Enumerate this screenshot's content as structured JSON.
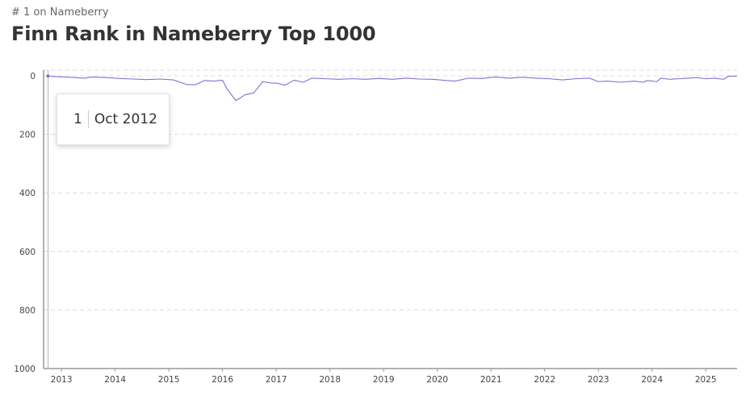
{
  "header": {
    "subtitle": "# 1 on Nameberry",
    "title": "Finn Rank in Nameberry Top 1000"
  },
  "tooltip": {
    "rank": "1",
    "date": "Oct 2012"
  },
  "colors": {
    "line": "#7b74d6",
    "grid": "#dcdcdc",
    "axis": "#999999",
    "cursor": "#bbbbbb"
  },
  "chart_data": {
    "type": "line",
    "title": "Finn Rank in Nameberry Top 1000",
    "xlabel": "",
    "ylabel": "",
    "y_inverted": true,
    "ylim": [
      1000,
      0
    ],
    "y_ticks": [
      0,
      200,
      400,
      600,
      800,
      1000
    ],
    "x_ticks": [
      "2013",
      "2014",
      "2015",
      "2016",
      "2017",
      "2018",
      "2019",
      "2020",
      "2021",
      "2022",
      "2023",
      "2024",
      "2025"
    ],
    "xlim": [
      "2012-09",
      "2025-08"
    ],
    "grid": true,
    "legend": "none",
    "series": [
      {
        "points": [
          [
            "2012-10",
            1
          ],
          [
            "2012-12",
            3
          ],
          [
            "2013-03",
            5
          ],
          [
            "2013-06",
            8
          ],
          [
            "2013-08",
            4
          ],
          [
            "2013-11",
            6
          ],
          [
            "2014-02",
            9
          ],
          [
            "2014-05",
            11
          ],
          [
            "2014-08",
            13
          ],
          [
            "2014-11",
            11
          ],
          [
            "2015-02",
            14
          ],
          [
            "2015-05",
            30
          ],
          [
            "2015-07",
            30
          ],
          [
            "2015-09",
            16
          ],
          [
            "2015-11",
            18
          ],
          [
            "2016-01",
            15
          ],
          [
            "2016-02",
            45
          ],
          [
            "2016-04",
            85
          ],
          [
            "2016-06",
            65
          ],
          [
            "2016-08",
            58
          ],
          [
            "2016-10",
            20
          ],
          [
            "2016-12",
            25
          ],
          [
            "2017-01",
            25
          ],
          [
            "2017-03",
            32
          ],
          [
            "2017-05",
            15
          ],
          [
            "2017-07",
            22
          ],
          [
            "2017-09",
            8
          ],
          [
            "2017-12",
            10
          ],
          [
            "2018-03",
            12
          ],
          [
            "2018-06",
            10
          ],
          [
            "2018-09",
            12
          ],
          [
            "2018-12",
            9
          ],
          [
            "2019-03",
            12
          ],
          [
            "2019-06",
            8
          ],
          [
            "2019-09",
            11
          ],
          [
            "2019-12",
            12
          ],
          [
            "2020-03",
            16
          ],
          [
            "2020-05",
            18
          ],
          [
            "2020-08",
            8
          ],
          [
            "2020-11",
            9
          ],
          [
            "2021-02",
            4
          ],
          [
            "2021-05",
            8
          ],
          [
            "2021-08",
            5
          ],
          [
            "2021-11",
            8
          ],
          [
            "2022-02",
            10
          ],
          [
            "2022-05",
            14
          ],
          [
            "2022-08",
            10
          ],
          [
            "2022-11",
            8
          ],
          [
            "2023-01",
            20
          ],
          [
            "2023-03",
            18
          ],
          [
            "2023-06",
            22
          ],
          [
            "2023-09",
            18
          ],
          [
            "2023-11",
            22
          ],
          [
            "2023-12",
            16
          ],
          [
            "2024-02",
            20
          ],
          [
            "2024-03",
            8
          ],
          [
            "2024-05",
            12
          ],
          [
            "2024-07",
            10
          ],
          [
            "2024-09",
            8
          ],
          [
            "2024-11",
            6
          ],
          [
            "2025-01",
            10
          ],
          [
            "2025-03",
            8
          ],
          [
            "2025-05",
            12
          ],
          [
            "2025-06",
            2
          ],
          [
            "2025-08",
            1
          ]
        ]
      }
    ]
  }
}
